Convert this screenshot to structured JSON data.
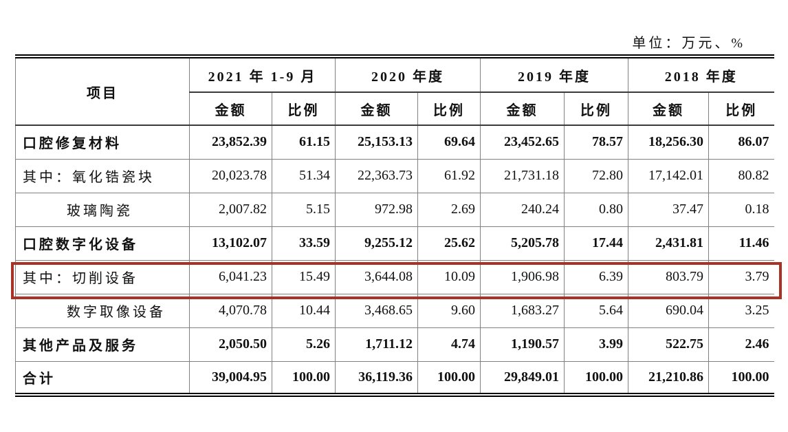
{
  "unit_label": "单位：万元、%",
  "table": {
    "item_header": "项目",
    "amount_label": "金额",
    "ratio_label": "比例",
    "highlight_color": "#A93226",
    "periods": [
      "2021 年 1-9 月",
      "2020 年度",
      "2019 年度",
      "2018 年度"
    ],
    "rows": [
      {
        "label": "口腔修复材料",
        "bold": true,
        "indent": 0,
        "highlighted": false,
        "values": [
          "23,852.39",
          "61.15",
          "25,153.13",
          "69.64",
          "23,452.65",
          "78.57",
          "18,256.30",
          "86.07"
        ]
      },
      {
        "label": "其中：氧化锆瓷块",
        "bold": false,
        "indent": 0,
        "highlighted": false,
        "values": [
          "20,023.78",
          "51.34",
          "22,363.73",
          "61.92",
          "21,731.18",
          "72.80",
          "17,142.01",
          "80.82"
        ]
      },
      {
        "label": "玻璃陶瓷",
        "bold": false,
        "indent": 1,
        "highlighted": false,
        "values": [
          "2,007.82",
          "5.15",
          "972.98",
          "2.69",
          "240.24",
          "0.80",
          "37.47",
          "0.18"
        ]
      },
      {
        "label": "口腔数字化设备",
        "bold": true,
        "indent": 0,
        "highlighted": false,
        "values": [
          "13,102.07",
          "33.59",
          "9,255.12",
          "25.62",
          "5,205.78",
          "17.44",
          "2,431.81",
          "11.46"
        ]
      },
      {
        "label": "其中：切削设备",
        "bold": false,
        "indent": 0,
        "highlighted": true,
        "values": [
          "6,041.23",
          "15.49",
          "3,644.08",
          "10.09",
          "1,906.98",
          "6.39",
          "803.79",
          "3.79"
        ]
      },
      {
        "label": "数字取像设备",
        "bold": false,
        "indent": 1,
        "highlighted": false,
        "values": [
          "4,070.78",
          "10.44",
          "3,468.65",
          "9.60",
          "1,683.27",
          "5.64",
          "690.04",
          "3.25"
        ]
      },
      {
        "label": "其他产品及服务",
        "bold": true,
        "indent": 0,
        "highlighted": false,
        "values": [
          "2,050.50",
          "5.26",
          "1,711.12",
          "4.74",
          "1,190.57",
          "3.99",
          "522.75",
          "2.46"
        ]
      },
      {
        "label": "合计",
        "bold": true,
        "indent": 0,
        "highlighted": false,
        "values": [
          "39,004.95",
          "100.00",
          "36,119.36",
          "100.00",
          "29,849.01",
          "100.00",
          "21,210.86",
          "100.00"
        ]
      }
    ]
  }
}
